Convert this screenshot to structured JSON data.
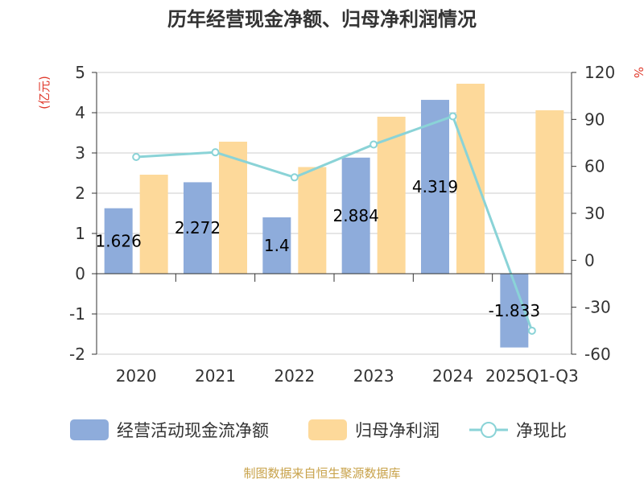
{
  "chart_data": {
    "type": "bar+line",
    "title": "历年经营现金净额、归母净利润情况",
    "categories": [
      "2020",
      "2021",
      "2022",
      "2023",
      "2024",
      "2025Q1-Q3"
    ],
    "series": [
      {
        "name": "经营活动现金流净额",
        "type": "bar",
        "axis": "left",
        "values": [
          1.626,
          2.272,
          1.4,
          2.884,
          4.319,
          -1.833
        ],
        "labels": [
          "1.626",
          "2.272",
          "1.4",
          "2.884",
          "4.319",
          "-1.833"
        ],
        "color": "#8eacdb"
      },
      {
        "name": "归母净利润",
        "type": "bar",
        "axis": "left",
        "values": [
          2.46,
          3.28,
          2.65,
          3.9,
          4.72,
          4.06
        ],
        "color": "#fdd99a"
      },
      {
        "name": "净现比",
        "type": "line",
        "axis": "right",
        "values": [
          66,
          69,
          53,
          74,
          92,
          -45
        ],
        "color": "#8ad3d7"
      }
    ],
    "y_left": {
      "unit_label": "(亿元)",
      "ylim": [
        -2,
        5
      ],
      "ticks": [
        5,
        4,
        3,
        2,
        1,
        0,
        -1,
        -2
      ],
      "tick_labels": [
        "5",
        "4",
        "3",
        "2",
        "1",
        "0",
        "-1",
        "-2"
      ]
    },
    "y_right": {
      "unit_label": "%",
      "ylim": [
        -60,
        120
      ],
      "ticks": [
        120,
        90,
        60,
        30,
        0,
        -30,
        -60
      ],
      "tick_labels": [
        "120",
        "90",
        "60",
        "30",
        "0",
        "-30",
        "-60"
      ]
    },
    "grid": true,
    "legend_position": "bottom"
  },
  "source_note": "制图数据来自恒生聚源数据库",
  "colors": {
    "title": "#333333",
    "axis_text": "#333333",
    "unit_text": "#e0392b",
    "grid": "#cccccc",
    "axis_line": "#333333",
    "source": "#c8a24a"
  }
}
